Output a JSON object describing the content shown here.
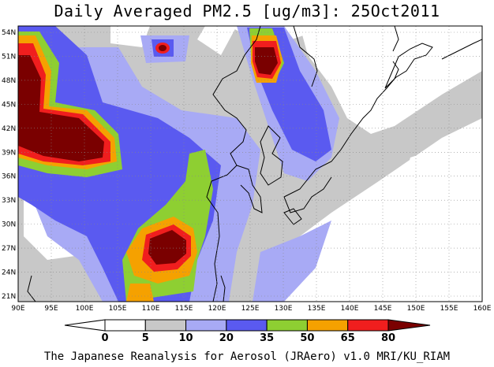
{
  "title": "Daily Averaged PM2.5 [ug/m3]: 25Oct2011",
  "footer": "The Japanese Reanalysis for Aerosol (JRAero) v1.0 MRI/KU_RIAM",
  "lat_labels": [
    "54N",
    "51N",
    "48N",
    "45N",
    "42N",
    "39N",
    "36N",
    "33N",
    "30N",
    "27N",
    "24N",
    "21N"
  ],
  "lon_labels": [
    "90E",
    "95E",
    "100E",
    "105E",
    "110E",
    "115E",
    "120E",
    "125E",
    "130E",
    "135E",
    "140E",
    "145E",
    "150E",
    "155E",
    "160E"
  ],
  "colorbar": {
    "labels": [
      "0",
      "5",
      "10",
      "20",
      "35",
      "50",
      "65",
      "80"
    ],
    "colors": [
      "#ffffff",
      "#ffffff",
      "#c8c8c8",
      "#a8aaf5",
      "#5a5af0",
      "#8ecf32",
      "#f5a100",
      "#f01e1e",
      "#7a0000"
    ]
  }
}
